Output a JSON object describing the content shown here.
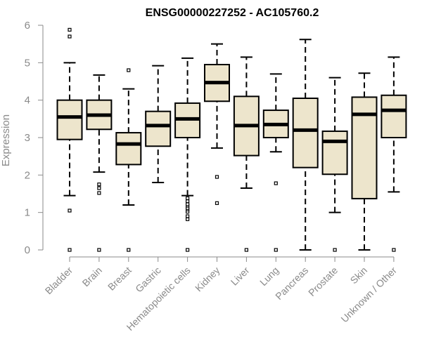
{
  "chart_data": {
    "type": "boxplot",
    "title": "ENSG00000227252 - AC105760.2",
    "xlabel": "",
    "ylabel": "Expression",
    "ylim": [
      0,
      6
    ],
    "yticks": [
      0,
      1,
      2,
      3,
      4,
      5,
      6
    ],
    "box_color": "#ede5cc",
    "categories": [
      "Bladder",
      "Brain",
      "Breast",
      "Gastric",
      "Hematopoietic cells",
      "Kidney",
      "Liver",
      "Lung",
      "Pancreas",
      "Prostate",
      "Skin",
      "Unknown / Other"
    ],
    "boxes": [
      {
        "whisker_low": 1.45,
        "q1": 2.95,
        "median": 3.55,
        "q3": 4.0,
        "whisker_high": 5.0,
        "outliers": [
          0,
          1.05,
          5.7,
          5.88
        ]
      },
      {
        "whisker_low": 2.08,
        "q1": 3.22,
        "median": 3.6,
        "q3": 4.0,
        "whisker_high": 4.67,
        "outliers": [
          0,
          1.52,
          1.65,
          1.75
        ]
      },
      {
        "whisker_low": 1.2,
        "q1": 2.28,
        "median": 2.83,
        "q3": 3.13,
        "whisker_high": 4.3,
        "outliers": [
          0,
          4.8
        ]
      },
      {
        "whisker_low": 1.8,
        "q1": 2.77,
        "median": 3.32,
        "q3": 3.7,
        "whisker_high": 4.92,
        "outliers": []
      },
      {
        "whisker_low": 1.45,
        "q1": 3.0,
        "median": 3.5,
        "q3": 3.92,
        "whisker_high": 5.12,
        "outliers": [
          0,
          0.82,
          0.9,
          1.02,
          1.08,
          1.12,
          1.18,
          1.22,
          1.3,
          1.38
        ]
      },
      {
        "whisker_low": 2.72,
        "q1": 3.97,
        "median": 4.47,
        "q3": 4.95,
        "whisker_high": 5.5,
        "outliers": [
          1.25,
          1.95
        ]
      },
      {
        "whisker_low": 1.65,
        "q1": 2.52,
        "median": 3.32,
        "q3": 4.1,
        "whisker_high": 5.15,
        "outliers": [
          0
        ]
      },
      {
        "whisker_low": 2.62,
        "q1": 3.0,
        "median": 3.35,
        "q3": 3.73,
        "whisker_high": 4.7,
        "outliers": [
          0,
          1.78
        ]
      },
      {
        "whisker_low": 0.0,
        "q1": 2.2,
        "median": 3.2,
        "q3": 4.05,
        "whisker_high": 5.62,
        "outliers": []
      },
      {
        "whisker_low": 1.0,
        "q1": 2.02,
        "median": 2.9,
        "q3": 3.17,
        "whisker_high": 4.6,
        "outliers": [
          0
        ]
      },
      {
        "whisker_low": 0.0,
        "q1": 1.37,
        "median": 3.62,
        "q3": 4.08,
        "whisker_high": 4.72,
        "outliers": []
      },
      {
        "whisker_low": 1.55,
        "q1": 3.0,
        "median": 3.73,
        "q3": 4.13,
        "whisker_high": 5.15,
        "outliers": [
          0
        ]
      }
    ]
  }
}
